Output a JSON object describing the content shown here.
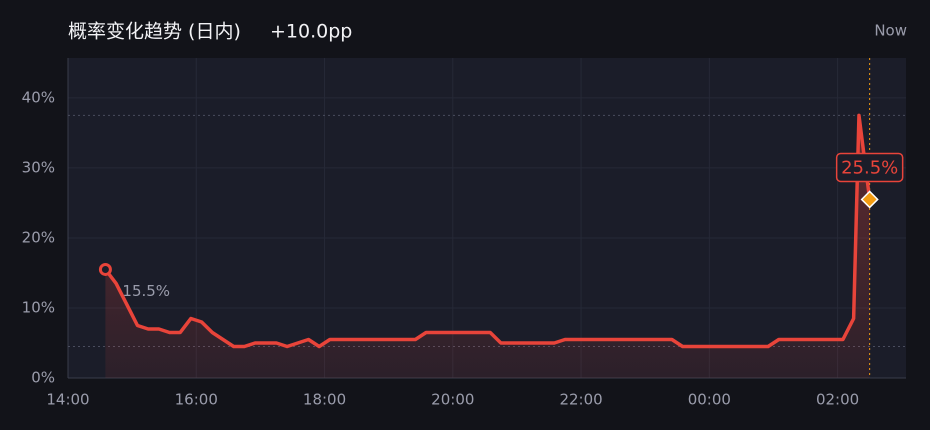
{
  "header": {
    "title": "概率变化趋势 (日内)",
    "change": "+10.0pp",
    "now_label": "Now"
  },
  "chart_data": {
    "type": "line",
    "x": [
      "14:35",
      "14:45",
      "14:55",
      "15:05",
      "15:15",
      "15:25",
      "15:35",
      "15:45",
      "15:55",
      "16:05",
      "16:15",
      "16:25",
      "16:35",
      "16:45",
      "16:55",
      "17:05",
      "17:15",
      "17:25",
      "17:35",
      "17:45",
      "17:55",
      "18:05",
      "18:15",
      "19:25",
      "19:35",
      "20:35",
      "20:45",
      "21:35",
      "21:45",
      "23:25",
      "23:35",
      "00:55",
      "01:05",
      "02:05",
      "02:15",
      "02:20",
      "02:30"
    ],
    "series": [
      {
        "name": "概率",
        "color": "#e8443a",
        "values": [
          15.5,
          13.5,
          10.5,
          7.5,
          7.0,
          7.0,
          6.5,
          6.5,
          8.5,
          8.0,
          6.5,
          5.5,
          4.5,
          4.5,
          5.0,
          5.0,
          5.0,
          4.5,
          5.0,
          5.5,
          4.5,
          5.5,
          5.5,
          5.5,
          6.5,
          6.5,
          5.0,
          5.0,
          5.5,
          5.5,
          4.5,
          4.5,
          5.5,
          5.5,
          8.5,
          37.5,
          25.5
        ],
        "value_labels": [
          "15.5%",
          null,
          null,
          null,
          null,
          null,
          null,
          null,
          null,
          null,
          null,
          null,
          null,
          null,
          null,
          null,
          null,
          null,
          null,
          null,
          null,
          null,
          null,
          null,
          null,
          null,
          null,
          null,
          null,
          null,
          null,
          null,
          null,
          null,
          null,
          null,
          "25.5%"
        ]
      }
    ],
    "marker_color": "#f39c12",
    "reference_lines": [
      37.5,
      4.5
    ],
    "xlim": [
      "14:00",
      "03:04"
    ],
    "xticks": [
      "14:00",
      "16:00",
      "18:00",
      "20:00",
      "22:00",
      "00:00",
      "02:00"
    ],
    "ylim": [
      0,
      45.7
    ],
    "yticks": [
      {
        "value": 0,
        "label": "0%"
      },
      {
        "value": 10,
        "label": "10%"
      },
      {
        "value": 20,
        "label": "20%"
      },
      {
        "value": 30,
        "label": "30%"
      },
      {
        "value": 40,
        "label": "40%"
      }
    ],
    "grid": true
  }
}
